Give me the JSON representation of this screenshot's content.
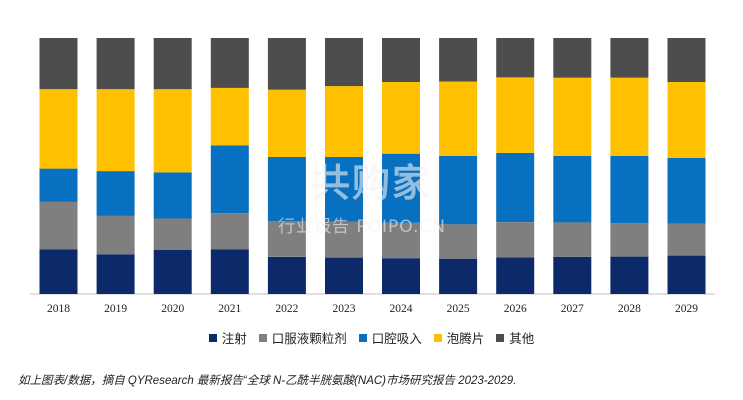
{
  "chart_data": {
    "type": "bar",
    "stacked": true,
    "percent": true,
    "categories": [
      "2018",
      "2019",
      "2020",
      "2021",
      "2022",
      "2023",
      "2024",
      "2025",
      "2026",
      "2027",
      "2028",
      "2029"
    ],
    "series": [
      {
        "name": "注射",
        "color": "#0c2a6a",
        "values": [
          17.5,
          15.5,
          17.2,
          17.5,
          14.5,
          14.2,
          14.0,
          13.8,
          14.3,
          14.5,
          14.6,
          15.0
        ]
      },
      {
        "name": "口服液颗粒剂",
        "color": "#7f7f7f",
        "values": [
          18.5,
          15.0,
          12.3,
          14.0,
          14.0,
          14.0,
          13.8,
          13.5,
          13.8,
          13.5,
          13.0,
          12.5
        ]
      },
      {
        "name": "口腔吸入",
        "color": "#0870c0",
        "values": [
          13.0,
          17.5,
          18.0,
          26.5,
          25.0,
          25.3,
          27.0,
          26.7,
          27.0,
          26.0,
          26.3,
          25.7
        ]
      },
      {
        "name": "泡腾片",
        "color": "#ffc000",
        "values": [
          31.0,
          32.0,
          32.5,
          22.5,
          26.3,
          27.7,
          28.0,
          29.0,
          29.5,
          30.5,
          30.6,
          29.6
        ]
      },
      {
        "name": "其他",
        "color": "#4d4d4d",
        "values": [
          20.0,
          20.0,
          20.0,
          19.5,
          20.2,
          18.8,
          17.2,
          17.0,
          15.4,
          15.5,
          15.5,
          17.2
        ]
      }
    ],
    "ylim": [
      0,
      100
    ],
    "legend_position": "bottom"
  },
  "watermark": {
    "main": "共购家",
    "sub": "行业报告 POIPO.CN"
  },
  "caption": "如上图表/数据，摘自 QYResearch 最新报告“全球 N-乙酰半胱氨酸(NAC)市场研究报告 2023-2029."
}
